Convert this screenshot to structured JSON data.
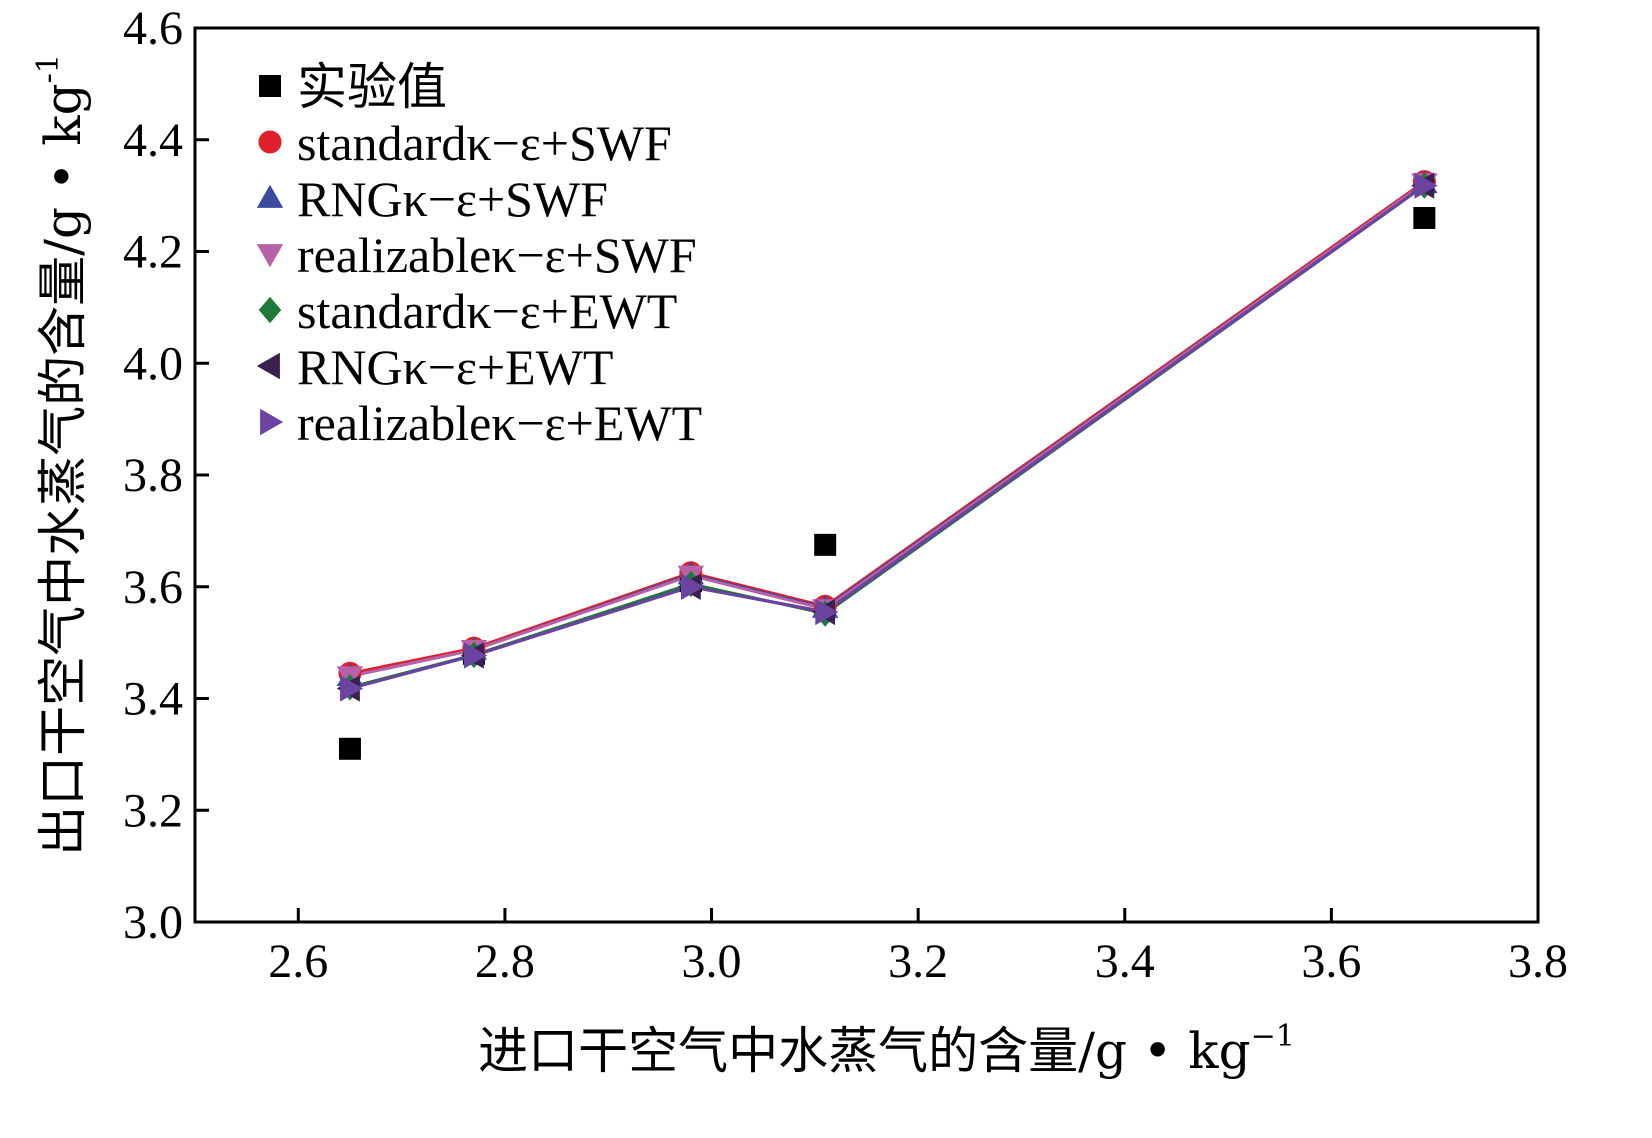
{
  "chart_data": {
    "type": "scatter",
    "title": "",
    "xlabel": "进口干空气中水蒸气的含量/g • kg",
    "xlabel_sup": "−1",
    "ylabel": "出口干空气中水蒸气的含量/g • kg",
    "ylabel_sup": "-1",
    "xlim": [
      2.5,
      3.8
    ],
    "ylim": [
      3.0,
      4.6
    ],
    "xticks": [
      "2.6",
      "2.8",
      "3.0",
      "3.2",
      "3.4",
      "3.6",
      "3.8"
    ],
    "yticks": [
      "3.0",
      "3.2",
      "3.4",
      "3.6",
      "3.8",
      "4.0",
      "4.2",
      "4.4",
      "4.6"
    ],
    "grid": false,
    "legend_position": "top-left",
    "x": [
      2.65,
      2.77,
      2.98,
      3.11,
      3.69
    ],
    "series": [
      {
        "name": "实验值",
        "marker": "square",
        "color": "#000000",
        "line": false,
        "values": [
          3.31,
          3.48,
          3.61,
          3.675,
          4.26
        ]
      },
      {
        "name": "standardκ−ε+SWF",
        "marker": "circle",
        "color": "#e0202a",
        "line": true,
        "values": [
          3.445,
          3.49,
          3.625,
          3.565,
          4.325
        ]
      },
      {
        "name": "RNGκ−ε+SWF",
        "marker": "triangle-up",
        "color": "#3b4ba0",
        "line": true,
        "values": [
          3.44,
          3.487,
          3.622,
          3.562,
          4.322
        ]
      },
      {
        "name": "realizableκ−ε+SWF",
        "marker": "triangle-down",
        "color": "#b860a8",
        "line": true,
        "values": [
          3.44,
          3.487,
          3.62,
          3.56,
          4.322
        ]
      },
      {
        "name": "standardκ−ε+EWT",
        "marker": "diamond",
        "color": "#1d7a3a",
        "line": true,
        "values": [
          3.42,
          3.478,
          3.605,
          3.552,
          4.318
        ]
      },
      {
        "name": "RNGκ−ε+EWT",
        "marker": "triangle-left",
        "color": "#3a2050",
        "line": true,
        "values": [
          3.418,
          3.477,
          3.6,
          3.555,
          4.318
        ]
      },
      {
        "name": "realizableκ−ε+EWT",
        "marker": "triangle-right",
        "color": "#6a44a0",
        "line": true,
        "values": [
          3.418,
          3.477,
          3.6,
          3.555,
          4.318
        ]
      }
    ]
  }
}
